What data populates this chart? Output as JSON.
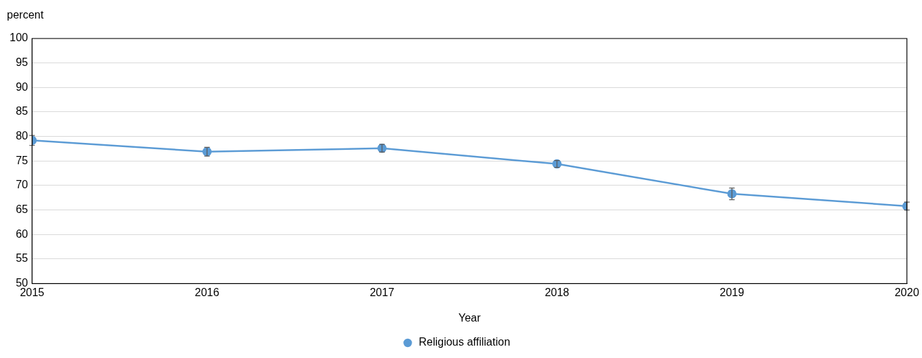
{
  "chart_data": {
    "type": "line",
    "xlabel": "Year",
    "ylabel": "percent",
    "x": [
      2015,
      2016,
      2017,
      2018,
      2019,
      2020
    ],
    "series": [
      {
        "name": "Religious affiliation",
        "color": "#5b9bd5",
        "values": [
          79.2,
          76.9,
          77.6,
          74.4,
          68.3,
          65.8
        ],
        "errors": [
          1.0,
          0.9,
          0.8,
          0.7,
          1.2,
          0.8
        ]
      }
    ],
    "xlim": [
      2015,
      2020
    ],
    "xticks": [
      2015,
      2016,
      2017,
      2018,
      2019,
      2020
    ],
    "ylim": [
      50,
      100
    ],
    "yticks": [
      50,
      55,
      60,
      65,
      70,
      75,
      80,
      85,
      90,
      95,
      100
    ],
    "grid": "y",
    "legend": "bottom",
    "marker": "circle",
    "line_style": "solid"
  }
}
